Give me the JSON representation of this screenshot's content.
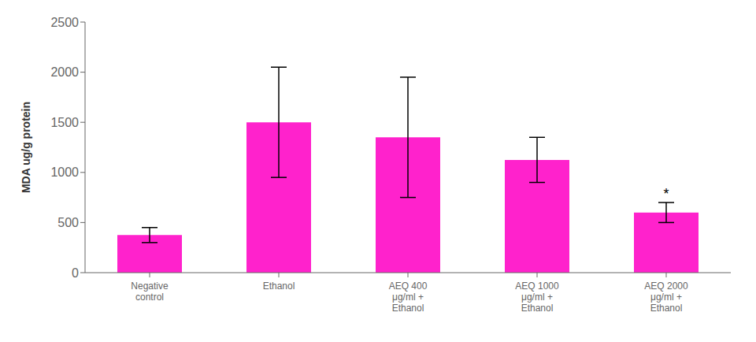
{
  "chart_data": {
    "type": "bar",
    "categories": [
      "Negative\ncontrol",
      "Ethanol",
      "AEQ 400\nμg/ml +\nEthanol",
      "AEQ 1000\nμg/ml +\nEthanol",
      "AEQ 2000\nμg/ml +\nEthanol"
    ],
    "values": [
      375,
      1500,
      1350,
      1125,
      600
    ],
    "errors": [
      75,
      550,
      600,
      225,
      100
    ],
    "color": "#FF22CC",
    "ylabel": "MDA ug/g protein",
    "ylim": [
      0,
      2500
    ],
    "yticks": [
      0,
      500,
      1000,
      1500,
      2000,
      2500
    ],
    "grid": false,
    "annotations": [
      {
        "text": "*",
        "category": "AEQ 2000\nμg/ml +\nEthanol"
      }
    ]
  }
}
